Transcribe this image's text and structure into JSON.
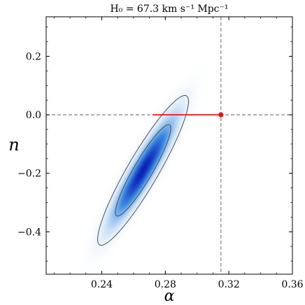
{
  "chart_data": {
    "type": "contour",
    "title": "H₀ = 67.3 km s⁻¹ Mpc⁻¹",
    "xlabel": "α",
    "ylabel": "n",
    "xlim": [
      0.205,
      0.36
    ],
    "ylim": [
      -0.545,
      0.335
    ],
    "xticks": [
      0.24,
      0.28,
      0.32,
      0.36
    ],
    "xtick_labels": [
      "0.24",
      "0.28",
      "0.32",
      "0.36"
    ],
    "yticks": [
      -0.4,
      -0.2,
      0.0,
      0.2
    ],
    "ytick_labels": [
      "−0.4",
      "−0.2",
      "0.0",
      "0.2"
    ],
    "density": {
      "center": [
        0.266,
        -0.19
      ],
      "sigma_alpha": 0.0115,
      "sigma_n": 0.103,
      "correlation": 0.92,
      "color_low": "#ffffff",
      "color_high": "#0a22b8"
    },
    "contours": [
      {
        "level": "68%"
      },
      {
        "level": "95%"
      }
    ],
    "reference_lines": {
      "vertical_x": 0.315,
      "horizontal_y": 0.0,
      "color": "#808080",
      "style": "dashed"
    },
    "highlight_segment": {
      "x_start": 0.272,
      "x_end": 0.315,
      "y": 0.0,
      "color": "#e8141e"
    },
    "marker": {
      "x": 0.315,
      "y": 0.0,
      "color": "#e8141e"
    },
    "grid": false,
    "legend": "none"
  }
}
